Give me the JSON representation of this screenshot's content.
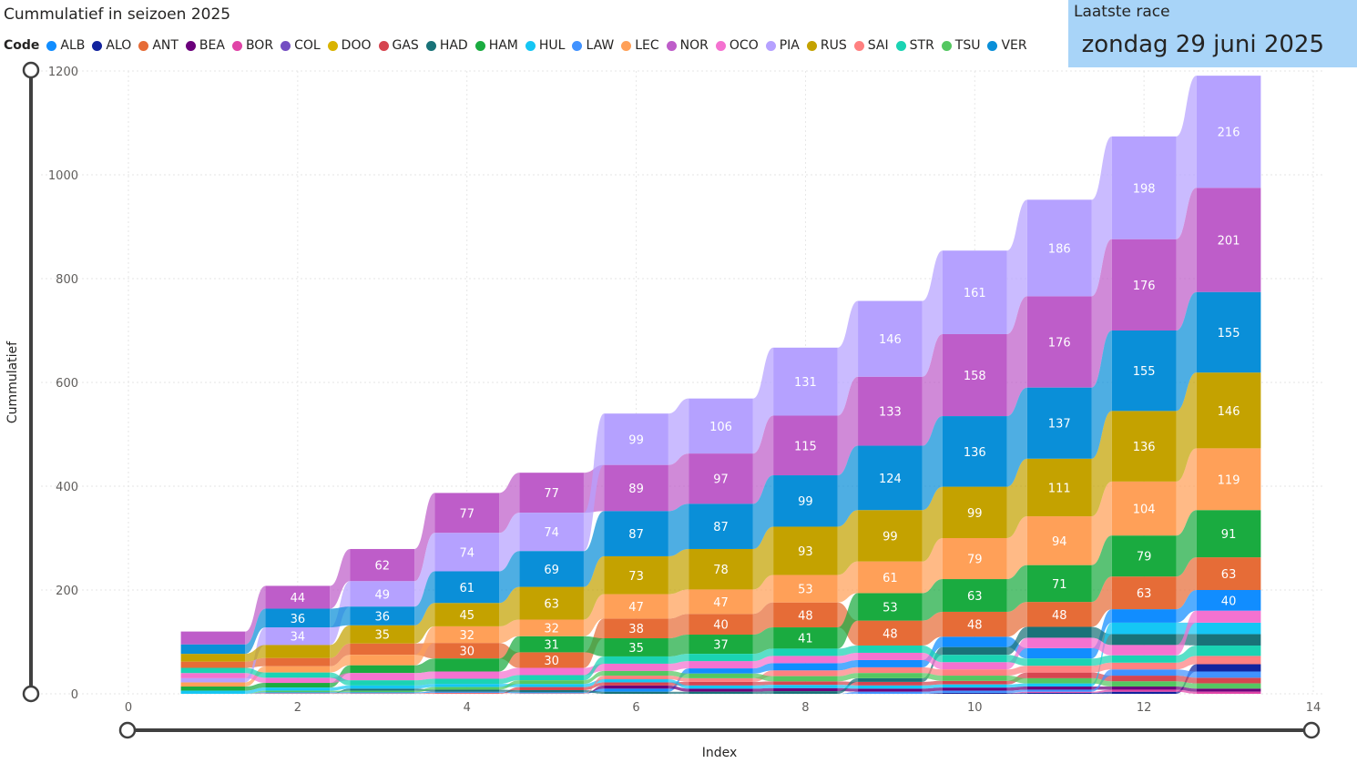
{
  "chart_title": "Cummulatief in seizoen 2025",
  "last_race": {
    "label": "Laatste race",
    "date": "zondag 29 juni 2025"
  },
  "legend_title": "Code",
  "chart_data": {
    "type": "area",
    "stacked": true,
    "title": "Cummulatief in seizoen 2025",
    "xlabel": "Index",
    "ylabel": "Cummulatief",
    "xlim": [
      0,
      14
    ],
    "ylim": [
      0,
      1200
    ],
    "xticks": [
      0,
      2,
      4,
      6,
      8,
      10,
      12,
      14
    ],
    "yticks": [
      0,
      200,
      400,
      600,
      800,
      1000,
      1200
    ],
    "grid": true,
    "legend_position": "top",
    "x": [
      1,
      2,
      3,
      4,
      5,
      6,
      7,
      8,
      9,
      10,
      11,
      12,
      13
    ],
    "series": [
      {
        "name": "ALB",
        "color": "#118dff",
        "values": [
          0,
          2,
          2,
          2,
          2,
          6,
          10,
          14,
          14,
          20,
          20,
          26,
          40
        ]
      },
      {
        "name": "ALO",
        "color": "#12239e",
        "values": [
          0,
          0,
          0,
          0,
          0,
          0,
          0,
          0,
          0,
          2,
          2,
          4,
          14
        ]
      },
      {
        "name": "ANT",
        "color": "#e66c37",
        "values": [
          12,
          16,
          22,
          30,
          30,
          38,
          40,
          48,
          48,
          48,
          48,
          63,
          63
        ]
      },
      {
        "name": "BEA",
        "color": "#6b007b",
        "values": [
          0,
          0,
          0,
          0,
          0,
          6,
          6,
          6,
          6,
          6,
          6,
          6,
          6
        ]
      },
      {
        "name": "BOR",
        "color": "#e044a7",
        "values": [
          0,
          0,
          0,
          0,
          0,
          0,
          0,
          0,
          0,
          0,
          2,
          4,
          4
        ]
      },
      {
        "name": "COL",
        "color": "#744ec2",
        "values": [
          0,
          0,
          0,
          0,
          0,
          0,
          0,
          0,
          0,
          0,
          0,
          0,
          0
        ]
      },
      {
        "name": "DOO",
        "color": "#d9b300",
        "values": [
          0,
          0,
          0,
          0,
          0,
          0,
          0,
          0,
          0,
          0,
          0,
          0,
          0
        ]
      },
      {
        "name": "GAS",
        "color": "#d64550",
        "values": [
          0,
          0,
          0,
          1,
          6,
          6,
          7,
          7,
          7,
          7,
          11,
          11,
          11
        ]
      },
      {
        "name": "HAD",
        "color": "#197278",
        "values": [
          0,
          0,
          4,
          4,
          4,
          4,
          4,
          5,
          7,
          15,
          21,
          21,
          22
        ]
      },
      {
        "name": "HAM",
        "color": "#1aab40",
        "values": [
          8,
          9,
          15,
          25,
          31,
          35,
          37,
          41,
          53,
          63,
          71,
          79,
          91
        ]
      },
      {
        "name": "HUL",
        "color": "#15c6f4",
        "values": [
          6,
          6,
          6,
          6,
          6,
          6,
          6,
          6,
          6,
          6,
          6,
          22,
          22
        ]
      },
      {
        "name": "LAW",
        "color": "#4092ff",
        "values": [
          0,
          0,
          0,
          0,
          0,
          0,
          0,
          0,
          4,
          4,
          4,
          12,
          12
        ]
      },
      {
        "name": "LEC",
        "color": "#ffa058",
        "values": [
          8,
          12,
          20,
          32,
          32,
          47,
          47,
          53,
          61,
          79,
          94,
          104,
          119
        ]
      },
      {
        "name": "NOR",
        "color": "#be5dc9",
        "values": [
          25,
          44,
          62,
          77,
          77,
          89,
          97,
          115,
          133,
          158,
          176,
          176,
          201
        ]
      },
      {
        "name": "OCO",
        "color": "#f472d0",
        "values": [
          10,
          10,
          14,
          14,
          14,
          14,
          14,
          14,
          14,
          14,
          20,
          20,
          23
        ]
      },
      {
        "name": "PIA",
        "color": "#b5a1ff",
        "values": [
          8,
          34,
          49,
          74,
          74,
          99,
          106,
          131,
          146,
          161,
          186,
          198,
          216
        ]
      },
      {
        "name": "RUS",
        "color": "#c4a200",
        "values": [
          15,
          25,
          35,
          45,
          63,
          73,
          78,
          93,
          99,
          99,
          111,
          136,
          146
        ]
      },
      {
        "name": "SAI",
        "color": "#ff8080",
        "values": [
          0,
          1,
          1,
          1,
          1,
          7,
          7,
          11,
          11,
          12,
          13,
          13,
          16
        ]
      },
      {
        "name": "STR",
        "color": "#1ad3b3",
        "values": [
          10,
          10,
          10,
          10,
          10,
          14,
          14,
          14,
          14,
          14,
          14,
          14,
          20
        ]
      },
      {
        "name": "TSU",
        "color": "#54c761",
        "values": [
          0,
          3,
          3,
          5,
          7,
          9,
          9,
          10,
          10,
          10,
          10,
          10,
          10
        ]
      },
      {
        "name": "VER",
        "color": "#0a8fd8",
        "values": [
          18,
          36,
          36,
          61,
          69,
          87,
          87,
          99,
          124,
          136,
          137,
          155,
          155
        ]
      }
    ]
  }
}
